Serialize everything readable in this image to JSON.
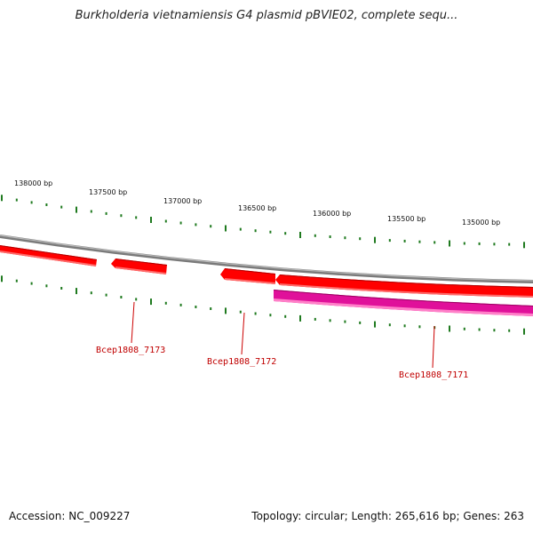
{
  "title": "Burkholderia vietnamiensis G4 plasmid pBVIE02, complete sequ...",
  "footer": {
    "accession": "Accession: NC_009227",
    "summary": "Topology: circular; Length: 265,616 bp; Genes: 263"
  },
  "ruler_ticks": [
    {
      "label": "138000 bp",
      "pos": 138000
    },
    {
      "label": "137500 bp",
      "pos": 137500
    },
    {
      "label": "137000 bp",
      "pos": 137000
    },
    {
      "label": "136500 bp",
      "pos": 136500
    },
    {
      "label": "136000 bp",
      "pos": 136000
    },
    {
      "label": "135500 bp",
      "pos": 135500
    },
    {
      "label": "135000 bp",
      "pos": 135000
    }
  ],
  "genes": [
    {
      "name": "Bcep1808_7173",
      "label": "Bcep1808_7173"
    },
    {
      "name": "Bcep1808_7172",
      "label": "Bcep1808_7172"
    },
    {
      "name": "Bcep1808_7171",
      "label": "Bcep1808_7171"
    }
  ],
  "colors": {
    "gene": "#ff0000",
    "gene_dark": "#b00000",
    "gene_light": "#ff6a6a",
    "cds": "#e0109a",
    "cds_light": "#ff80c8",
    "backbone": "#808080",
    "tick": "#1f7a1f",
    "label_line": "#cc0000"
  }
}
